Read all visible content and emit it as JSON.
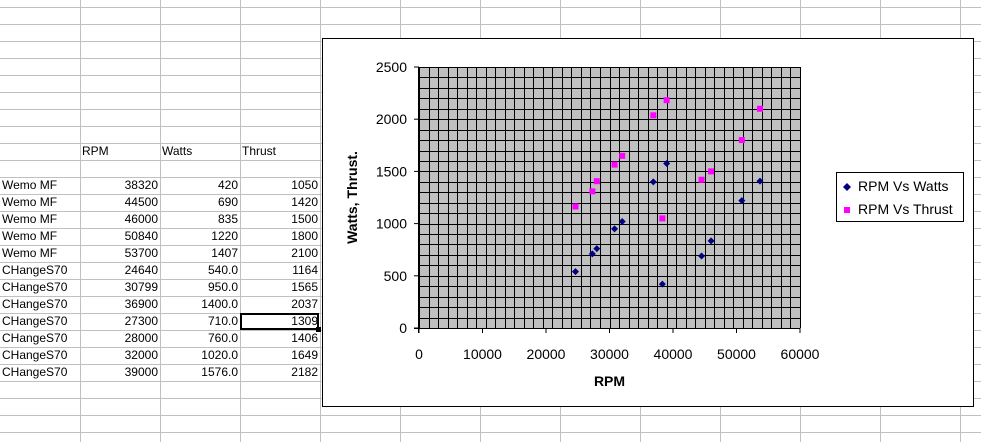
{
  "sheet": {
    "headers": [
      "RPM",
      "Watts",
      "Thrust"
    ],
    "rows": [
      {
        "label": "Wemo MF",
        "rpm": "38320",
        "watts": "420",
        "thrust": "1050"
      },
      {
        "label": "Wemo MF",
        "rpm": "44500",
        "watts": "690",
        "thrust": "1420"
      },
      {
        "label": "Wemo MF",
        "rpm": "46000",
        "watts": "835",
        "thrust": "1500"
      },
      {
        "label": "Wemo MF",
        "rpm": "50840",
        "watts": "1220",
        "thrust": "1800"
      },
      {
        "label": "Wemo MF",
        "rpm": "53700",
        "watts": "1407",
        "thrust": "2100"
      },
      {
        "label": "CHangeS70",
        "rpm": "24640",
        "watts": "540.0",
        "thrust": "1164"
      },
      {
        "label": "CHangeS70",
        "rpm": "30799",
        "watts": "950.0",
        "thrust": "1565"
      },
      {
        "label": "CHangeS70",
        "rpm": "36900",
        "watts": "1400.0",
        "thrust": "2037"
      },
      {
        "label": "CHangeS70",
        "rpm": "27300",
        "watts": "710.0",
        "thrust": "1309"
      },
      {
        "label": "CHangeS70",
        "rpm": "28000",
        "watts": "760.0",
        "thrust": "1406"
      },
      {
        "label": "CHangeS70",
        "rpm": "32000",
        "watts": "1020.0",
        "thrust": "1649"
      },
      {
        "label": "CHangeS70",
        "rpm": "39000",
        "watts": "1576.0",
        "thrust": "2182"
      }
    ],
    "selected_cell_value": "1309"
  },
  "colors": {
    "plot_bg": "#c0c0c0",
    "gridline": "#000000",
    "watts_series": "#000080",
    "thrust_series": "#ff00ff",
    "sheet_gridline": "#c0c0c0"
  },
  "chart_data": {
    "type": "scatter",
    "xlabel": "RPM",
    "ylabel": "Watts, Thrust.",
    "xlim": [
      0,
      60000
    ],
    "ylim": [
      0,
      2500
    ],
    "xticks": [
      "0",
      "10000",
      "20000",
      "30000",
      "40000",
      "50000",
      "60000"
    ],
    "yticks": [
      "0",
      "500",
      "1000",
      "1500",
      "2000",
      "2500"
    ],
    "grid": true,
    "legend_position": "right",
    "series": [
      {
        "name": "RPM Vs Watts",
        "marker": "diamond",
        "x": [
          38320,
          44500,
          46000,
          50840,
          53700,
          24640,
          30799,
          36900,
          27300,
          28000,
          32000,
          39000
        ],
        "y": [
          420,
          690,
          835,
          1220,
          1407,
          540,
          950,
          1400,
          710,
          760,
          1020,
          1576
        ]
      },
      {
        "name": "RPM Vs Thrust",
        "marker": "square",
        "x": [
          38320,
          44500,
          46000,
          50840,
          53700,
          24640,
          30799,
          36900,
          27300,
          28000,
          32000,
          39000
        ],
        "y": [
          1050,
          1420,
          1500,
          1800,
          2100,
          1164,
          1565,
          2037,
          1309,
          1406,
          1649,
          2182
        ]
      }
    ]
  }
}
